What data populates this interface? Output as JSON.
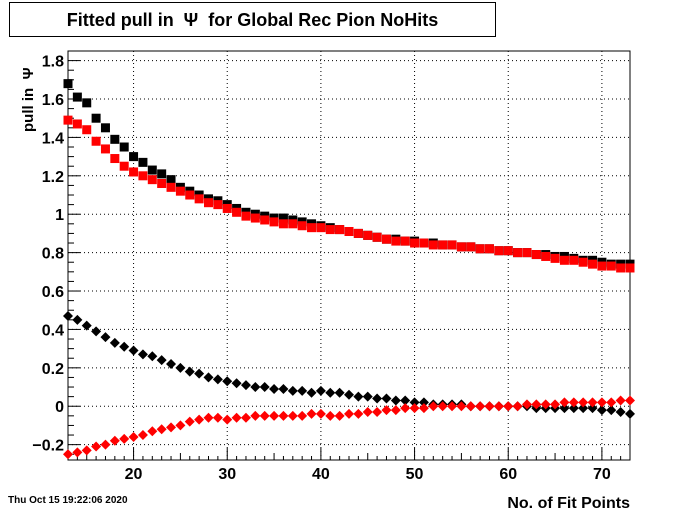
{
  "title": "Fitted pull in  Ψ  for Global Rec Pion NoHits",
  "timestamp": "Thu Oct 15 19:22:06 2020",
  "chart_data": {
    "type": "scatter",
    "title": "Fitted pull in  Ψ  for Global Rec Pion NoHits",
    "xlabel": "No. of Fit Points",
    "ylabel": "pull in  Ψ",
    "xlim": [
      13,
      73
    ],
    "ylim": [
      -0.28,
      1.85
    ],
    "xticks": [
      20,
      30,
      40,
      50,
      60,
      70
    ],
    "xtick_labels": [
      "20",
      "30",
      "40",
      "50",
      "60",
      "70"
    ],
    "yticks": [
      -0.2,
      0,
      0.2,
      0.4,
      0.6,
      0.8,
      1,
      1.2,
      1.4,
      1.6,
      1.8
    ],
    "ytick_labels": [
      "−0.2",
      "0",
      "0.2",
      "0.4",
      "0.6",
      "0.8",
      "1",
      "1.2",
      "1.4",
      "1.6",
      "1.8"
    ],
    "grid": true,
    "x": [
      13,
      14,
      15,
      16,
      17,
      18,
      19,
      20,
      21,
      22,
      23,
      24,
      25,
      26,
      27,
      28,
      29,
      30,
      31,
      32,
      33,
      34,
      35,
      36,
      37,
      38,
      39,
      40,
      41,
      42,
      43,
      44,
      45,
      46,
      47,
      48,
      49,
      50,
      51,
      52,
      53,
      54,
      55,
      56,
      57,
      58,
      59,
      60,
      61,
      62,
      63,
      64,
      65,
      66,
      67,
      68,
      69,
      70,
      71,
      72,
      73
    ],
    "series": [
      {
        "color": "#000000",
        "marker": "square",
        "values": [
          1.68,
          1.61,
          1.58,
          1.5,
          1.45,
          1.39,
          1.35,
          1.3,
          1.27,
          1.23,
          1.21,
          1.18,
          1.14,
          1.12,
          1.1,
          1.08,
          1.07,
          1.05,
          1.03,
          1.01,
          1.0,
          0.99,
          0.98,
          0.98,
          0.97,
          0.96,
          0.95,
          0.94,
          0.93,
          0.92,
          0.91,
          0.9,
          0.89,
          0.88,
          0.87,
          0.87,
          0.86,
          0.86,
          0.85,
          0.85,
          0.84,
          0.84,
          0.83,
          0.83,
          0.82,
          0.82,
          0.81,
          0.81,
          0.8,
          0.8,
          0.79,
          0.79,
          0.78,
          0.78,
          0.77,
          0.76,
          0.76,
          0.75,
          0.74,
          0.74,
          0.74
        ]
      },
      {
        "color": "#ff0000",
        "marker": "square",
        "values": [
          1.49,
          1.47,
          1.44,
          1.38,
          1.34,
          1.29,
          1.25,
          1.22,
          1.2,
          1.18,
          1.16,
          1.14,
          1.12,
          1.1,
          1.08,
          1.06,
          1.05,
          1.03,
          1.01,
          0.99,
          0.98,
          0.97,
          0.96,
          0.95,
          0.95,
          0.94,
          0.93,
          0.93,
          0.92,
          0.92,
          0.91,
          0.9,
          0.89,
          0.88,
          0.87,
          0.86,
          0.86,
          0.85,
          0.85,
          0.84,
          0.84,
          0.84,
          0.83,
          0.83,
          0.82,
          0.82,
          0.81,
          0.81,
          0.8,
          0.8,
          0.79,
          0.78,
          0.77,
          0.76,
          0.76,
          0.75,
          0.74,
          0.73,
          0.73,
          0.72,
          0.72
        ]
      },
      {
        "color": "#000000",
        "marker": "diamond",
        "values": [
          0.47,
          0.45,
          0.42,
          0.39,
          0.36,
          0.33,
          0.31,
          0.29,
          0.27,
          0.26,
          0.24,
          0.22,
          0.2,
          0.18,
          0.17,
          0.15,
          0.14,
          0.13,
          0.12,
          0.11,
          0.1,
          0.1,
          0.09,
          0.09,
          0.08,
          0.08,
          0.07,
          0.08,
          0.07,
          0.07,
          0.06,
          0.05,
          0.05,
          0.04,
          0.04,
          0.03,
          0.03,
          0.02,
          0.02,
          0.01,
          0.01,
          0.01,
          0.01,
          0.0,
          0.0,
          0.0,
          0.0,
          0.0,
          0.0,
          0.0,
          -0.01,
          -0.01,
          -0.01,
          -0.01,
          -0.01,
          -0.01,
          -0.01,
          -0.02,
          -0.02,
          -0.03,
          -0.04
        ]
      },
      {
        "color": "#ff0000",
        "marker": "diamond",
        "values": [
          -0.25,
          -0.24,
          -0.23,
          -0.21,
          -0.2,
          -0.18,
          -0.17,
          -0.16,
          -0.15,
          -0.13,
          -0.12,
          -0.11,
          -0.1,
          -0.08,
          -0.07,
          -0.06,
          -0.06,
          -0.07,
          -0.06,
          -0.06,
          -0.05,
          -0.05,
          -0.05,
          -0.05,
          -0.05,
          -0.05,
          -0.04,
          -0.04,
          -0.05,
          -0.05,
          -0.04,
          -0.04,
          -0.03,
          -0.03,
          -0.02,
          -0.02,
          -0.01,
          -0.01,
          -0.01,
          0.0,
          0.0,
          0.0,
          0.0,
          0.0,
          0.0,
          0.0,
          0.0,
          0.0,
          0.0,
          0.01,
          0.01,
          0.01,
          0.01,
          0.02,
          0.02,
          0.02,
          0.02,
          0.02,
          0.02,
          0.03,
          0.03
        ]
      }
    ]
  }
}
